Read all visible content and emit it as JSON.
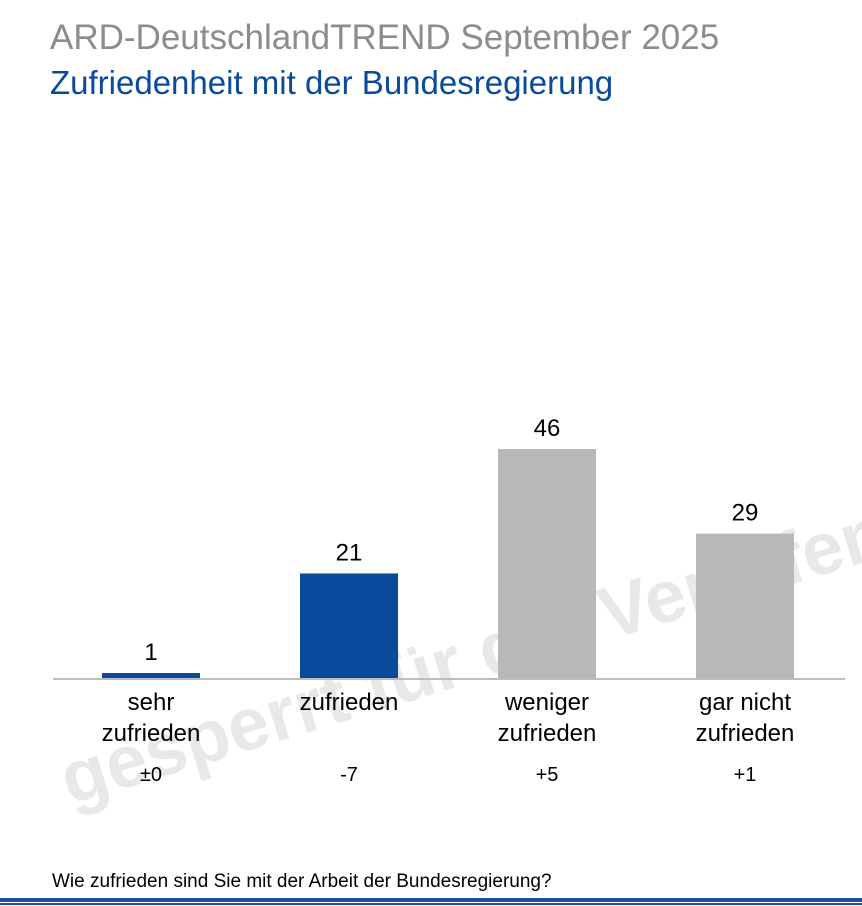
{
  "header": {
    "title": "ARD-DeutschlandTREND September 2025",
    "subtitle": "Zufriedenheit mit der Bundesregierung"
  },
  "footer": {
    "question": "Wie zufrieden sind Sie mit der Arbeit der Bundesregierung?"
  },
  "watermark": "gesperrt für die Veröffentlichung",
  "colors": {
    "positive": "#0a4a9c",
    "negative": "#b8b8b8",
    "title": "#8c8c8c",
    "subtitle": "#0a4a9c"
  },
  "chart_data": {
    "type": "bar",
    "categories": [
      [
        "sehr",
        "zufrieden"
      ],
      [
        "zufrieden"
      ],
      [
        "weniger",
        "zufrieden"
      ],
      [
        "gar nicht",
        "zufrieden"
      ]
    ],
    "values": [
      1,
      21,
      46,
      29
    ],
    "value_labels": [
      "1",
      "21",
      "46",
      "29"
    ],
    "changes": [
      "±0",
      "-7",
      "+5",
      "+1"
    ],
    "bar_colors": [
      "#0a4a9c",
      "#0a4a9c",
      "#b8b8b8",
      "#b8b8b8"
    ],
    "ylim": [
      0,
      46
    ],
    "grid": false,
    "legend": "none",
    "title": "",
    "xlabel": "",
    "ylabel": ""
  }
}
